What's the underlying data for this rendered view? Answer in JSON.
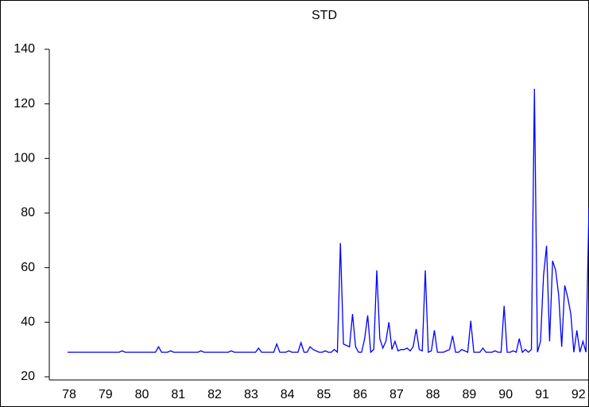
{
  "chart_data": {
    "type": "line",
    "title": "STD",
    "categories": [
      "78",
      null,
      null,
      null,
      null,
      null,
      null,
      null,
      null,
      null,
      null,
      null,
      "79",
      null,
      null,
      null,
      null,
      null,
      null,
      null,
      null,
      null,
      null,
      null,
      "80",
      null,
      null,
      null,
      null,
      null,
      null,
      null,
      null,
      null,
      null,
      null,
      "81",
      null,
      null,
      null,
      null,
      null,
      null,
      null,
      null,
      null,
      null,
      null,
      "82",
      null,
      null,
      null,
      null,
      null,
      null,
      null,
      null,
      null,
      null,
      null,
      "83",
      null,
      null,
      null,
      null,
      null,
      null,
      null,
      null,
      null,
      null,
      null,
      "84",
      null,
      null,
      null,
      null,
      null,
      null,
      null,
      null,
      null,
      null,
      null,
      "85",
      null,
      null,
      null,
      null,
      null,
      null,
      null,
      null,
      null,
      null,
      null,
      "86",
      null,
      null,
      null,
      null,
      null,
      null,
      null,
      null,
      null,
      null,
      null,
      "87",
      null,
      null,
      null,
      null,
      null,
      null,
      null,
      null,
      null,
      null,
      null,
      "88",
      null,
      null,
      null,
      null,
      null,
      null,
      null,
      null,
      null,
      null,
      null,
      "89",
      null,
      null,
      null,
      null,
      null,
      null,
      null,
      null,
      null,
      null,
      null,
      "90",
      null,
      null,
      null,
      null,
      null,
      null,
      null,
      null,
      null,
      null,
      null,
      "91",
      null,
      null,
      null,
      null,
      null,
      null,
      null,
      null,
      null,
      null,
      null,
      "92",
      null,
      null,
      null,
      null
    ],
    "values": [
      29,
      29,
      29,
      29,
      29,
      29,
      29,
      29,
      29,
      29,
      29,
      29,
      29,
      29,
      29,
      29,
      29,
      29,
      29.5,
      29,
      29,
      29,
      29,
      29,
      29,
      29,
      29,
      29,
      29,
      29,
      31,
      29,
      29,
      29,
      29.5,
      29,
      29,
      29,
      29,
      29,
      29,
      29,
      29,
      29,
      29.5,
      29,
      29,
      29,
      29,
      29,
      29,
      29,
      29,
      29,
      29.5,
      29,
      29,
      29,
      29,
      29,
      29,
      29,
      29,
      30.5,
      29,
      29,
      29,
      29,
      29,
      32,
      29,
      29,
      29,
      29.5,
      29,
      29,
      29,
      32.5,
      29,
      29,
      31,
      30,
      29.5,
      29,
      29,
      29.5,
      29,
      29,
      30,
      29,
      69,
      32,
      31.5,
      31,
      43,
      31,
      29,
      29,
      34,
      42.5,
      29,
      30,
      59,
      34,
      30.5,
      33,
      40,
      30,
      33,
      29.5,
      30,
      30,
      30.5,
      29.5,
      31,
      37.5,
      30,
      29.5,
      59,
      29,
      29.5,
      37,
      29,
      29,
      29,
      29.5,
      30,
      35,
      29,
      29,
      30,
      29.5,
      29,
      40.5,
      29,
      29,
      29,
      30.5,
      29,
      29,
      29,
      29.5,
      29,
      29,
      46,
      29,
      29,
      29.5,
      29,
      34,
      29,
      30,
      29,
      30,
      125.5,
      29,
      33,
      57,
      68,
      33,
      62.5,
      59,
      50,
      31,
      53.5,
      49,
      43,
      29,
      37,
      29,
      33,
      29,
      82
    ],
    "color": "#0000ff",
    "ylim": [
      20,
      140
    ],
    "yticks": [
      20,
      40,
      60,
      80,
      100,
      120,
      140
    ]
  }
}
